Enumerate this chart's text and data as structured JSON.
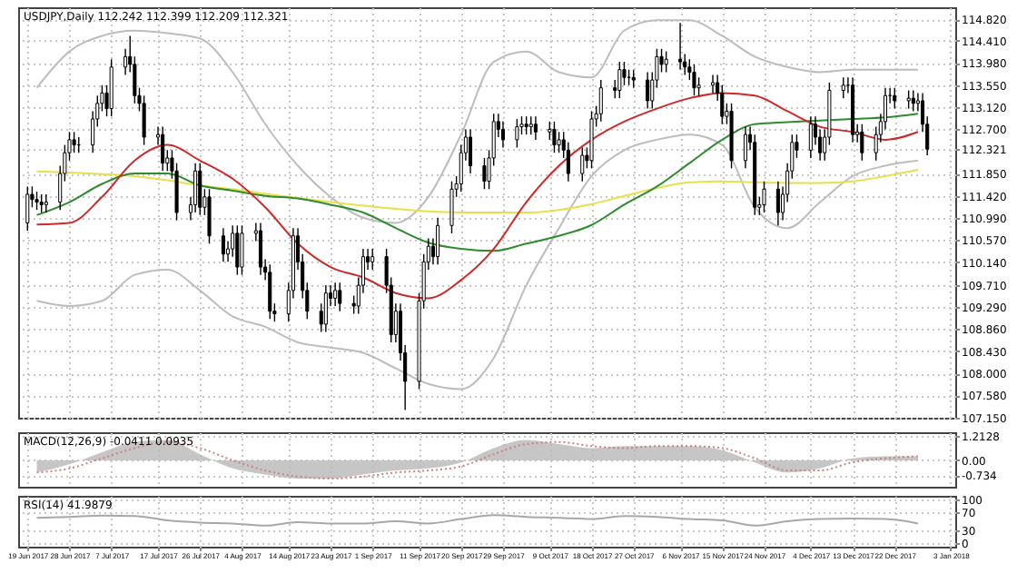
{
  "chart_data": [
    {
      "type": "candlestick",
      "title": "USDJPY,Daily  112.242 112.399 112.209 112.321",
      "x": [
        "2017-06-19",
        "2017-06-20",
        "2017-06-21",
        "2017-06-22",
        "2017-06-23",
        "2017-06-26",
        "2017-06-27",
        "2017-06-28",
        "2017-06-29",
        "2017-06-30",
        "2017-07-03",
        "2017-07-04",
        "2017-07-05",
        "2017-07-06",
        "2017-07-07",
        "2017-07-10",
        "2017-07-11",
        "2017-07-12",
        "2017-07-13",
        "2017-07-14",
        "2017-07-17",
        "2017-07-18",
        "2017-07-19",
        "2017-07-20",
        "2017-07-21",
        "2017-07-24",
        "2017-07-25",
        "2017-07-26",
        "2017-07-27",
        "2017-07-28",
        "2017-07-31",
        "2017-08-01",
        "2017-08-02",
        "2017-08-03",
        "2017-08-04",
        "2017-08-07",
        "2017-08-08",
        "2017-08-09",
        "2017-08-10",
        "2017-08-11",
        "2017-08-14",
        "2017-08-15",
        "2017-08-16",
        "2017-08-17",
        "2017-08-18",
        "2017-08-21",
        "2017-08-22",
        "2017-08-23",
        "2017-08-24",
        "2017-08-25",
        "2017-08-28",
        "2017-08-29",
        "2017-08-30",
        "2017-08-31",
        "2017-09-01",
        "2017-09-04",
        "2017-09-05",
        "2017-09-06",
        "2017-09-07",
        "2017-09-08",
        "2017-09-11",
        "2017-09-12",
        "2017-09-13",
        "2017-09-14",
        "2017-09-15",
        "2017-09-18",
        "2017-09-19",
        "2017-09-20",
        "2017-09-21",
        "2017-09-22",
        "2017-09-25",
        "2017-09-26",
        "2017-09-27",
        "2017-09-28",
        "2017-09-29",
        "2017-10-02",
        "2017-10-03",
        "2017-10-04",
        "2017-10-05",
        "2017-10-06",
        "2017-10-09",
        "2017-10-10",
        "2017-10-11",
        "2017-10-12",
        "2017-10-13",
        "2017-10-16",
        "2017-10-17",
        "2017-10-18",
        "2017-10-19",
        "2017-10-20",
        "2017-10-23",
        "2017-10-24",
        "2017-10-25",
        "2017-10-26",
        "2017-10-27",
        "2017-10-30",
        "2017-10-31",
        "2017-11-01",
        "2017-11-02",
        "2017-11-03",
        "2017-11-06",
        "2017-11-07",
        "2017-11-08",
        "2017-11-09",
        "2017-11-10",
        "2017-11-13",
        "2017-11-14",
        "2017-11-15",
        "2017-11-16",
        "2017-11-17",
        "2017-11-20",
        "2017-11-21",
        "2017-11-22",
        "2017-11-23",
        "2017-11-24",
        "2017-11-27",
        "2017-11-28",
        "2017-11-29",
        "2017-11-30",
        "2017-12-01",
        "2017-12-04",
        "2017-12-05",
        "2017-12-06",
        "2017-12-07",
        "2017-12-08",
        "2017-12-11",
        "2017-12-12",
        "2017-12-13",
        "2017-12-14",
        "2017-12-15",
        "2017-12-18",
        "2017-12-19",
        "2017-12-20",
        "2017-12-21",
        "2017-12-22",
        "2017-12-25",
        "2017-12-26",
        "2017-12-27",
        "2017-12-28",
        "2017-12-29"
      ],
      "ohlc": [
        [
          110.9,
          111.6,
          110.75,
          111.45
        ],
        [
          111.45,
          111.6,
          111.2,
          111.35
        ],
        [
          111.35,
          111.5,
          111.15,
          111.3
        ],
        [
          111.3,
          111.45,
          111.1,
          111.25
        ],
        [
          111.25,
          111.45,
          111.1,
          111.3
        ],
        [
          111.3,
          112.0,
          111.15,
          111.85
        ],
        [
          111.85,
          112.4,
          111.7,
          112.25
        ],
        [
          112.25,
          112.65,
          112.1,
          112.5
        ],
        [
          112.5,
          112.65,
          112.25,
          112.4
        ],
        [
          112.4,
          112.55,
          112.25,
          112.4
        ],
        [
          112.4,
          113.05,
          112.25,
          112.9
        ],
        [
          112.9,
          113.35,
          112.75,
          113.2
        ],
        [
          113.2,
          113.55,
          113.05,
          113.4
        ],
        [
          113.4,
          113.55,
          112.95,
          113.1
        ],
        [
          113.1,
          114.05,
          112.95,
          113.9
        ],
        [
          113.9,
          114.25,
          113.75,
          114.1
        ],
        [
          114.1,
          114.5,
          113.8,
          113.95
        ],
        [
          113.95,
          114.1,
          113.2,
          113.35
        ],
        [
          113.35,
          113.5,
          113.05,
          113.2
        ],
        [
          113.2,
          113.35,
          112.4,
          112.55
        ],
        [
          112.55,
          112.75,
          112.4,
          112.6
        ],
        [
          112.6,
          112.75,
          111.9,
          112.05
        ],
        [
          112.05,
          112.3,
          111.9,
          112.15
        ],
        [
          112.15,
          112.3,
          111.75,
          111.9
        ],
        [
          111.9,
          112.05,
          110.95,
          111.1
        ],
        [
          111.1,
          111.4,
          110.95,
          111.25
        ],
        [
          111.25,
          112.05,
          111.1,
          111.9
        ],
        [
          111.9,
          112.05,
          111.05,
          111.2
        ],
        [
          111.2,
          111.55,
          111.05,
          111.4
        ],
        [
          111.4,
          111.55,
          110.5,
          110.65
        ],
        [
          110.65,
          110.8,
          110.15,
          110.3
        ],
        [
          110.3,
          110.55,
          110.15,
          110.4
        ],
        [
          110.4,
          110.85,
          110.25,
          110.7
        ],
        [
          110.7,
          110.85,
          109.9,
          110.05
        ],
        [
          110.05,
          110.85,
          109.9,
          110.7
        ],
        [
          110.7,
          110.9,
          110.55,
          110.75
        ],
        [
          110.75,
          110.9,
          109.9,
          110.05
        ],
        [
          110.05,
          110.2,
          109.8,
          109.95
        ],
        [
          109.95,
          110.1,
          109.05,
          109.2
        ],
        [
          109.2,
          109.35,
          109.0,
          109.15
        ],
        [
          109.15,
          109.75,
          109.0,
          109.6
        ],
        [
          109.6,
          110.8,
          109.45,
          110.65
        ],
        [
          110.65,
          110.8,
          110.0,
          110.15
        ],
        [
          110.15,
          110.3,
          109.45,
          109.6
        ],
        [
          109.6,
          109.75,
          109.05,
          109.2
        ],
        [
          109.2,
          109.35,
          108.8,
          108.95
        ],
        [
          108.95,
          109.7,
          108.8,
          109.55
        ],
        [
          109.55,
          109.7,
          109.3,
          109.45
        ],
        [
          109.45,
          109.75,
          109.3,
          109.6
        ],
        [
          109.6,
          109.75,
          109.2,
          109.35
        ],
        [
          109.35,
          109.5,
          109.15,
          109.3
        ],
        [
          109.3,
          109.85,
          109.15,
          109.7
        ],
        [
          109.7,
          110.4,
          109.55,
          110.25
        ],
        [
          110.25,
          110.4,
          110.0,
          110.15
        ],
        [
          110.15,
          110.4,
          110.0,
          110.25
        ],
        [
          110.25,
          110.4,
          109.55,
          109.7
        ],
        [
          109.7,
          109.85,
          108.6,
          108.75
        ],
        [
          108.75,
          109.35,
          108.6,
          109.2
        ],
        [
          109.2,
          109.35,
          108.25,
          108.4
        ],
        [
          108.4,
          108.55,
          107.3,
          107.85
        ],
        [
          107.85,
          109.55,
          107.7,
          109.4
        ],
        [
          109.4,
          110.3,
          109.25,
          110.15
        ],
        [
          110.15,
          110.6,
          110.0,
          110.45
        ],
        [
          110.45,
          110.6,
          110.1,
          110.25
        ],
        [
          110.25,
          111.0,
          110.1,
          110.85
        ],
        [
          110.85,
          111.7,
          110.7,
          111.55
        ],
        [
          111.55,
          111.8,
          111.4,
          111.65
        ],
        [
          111.65,
          112.4,
          111.5,
          112.25
        ],
        [
          112.25,
          112.7,
          112.1,
          112.55
        ],
        [
          112.55,
          112.7,
          111.85,
          112.0
        ],
        [
          112.0,
          112.15,
          111.55,
          111.7
        ],
        [
          111.7,
          112.3,
          111.55,
          112.15
        ],
        [
          112.15,
          113.0,
          112.0,
          112.85
        ],
        [
          112.85,
          113.0,
          112.55,
          112.7
        ],
        [
          112.7,
          112.85,
          112.35,
          112.5
        ],
        [
          112.5,
          112.9,
          112.35,
          112.75
        ],
        [
          112.75,
          112.95,
          112.6,
          112.8
        ],
        [
          112.8,
          112.95,
          112.6,
          112.75
        ],
        [
          112.75,
          112.95,
          112.6,
          112.8
        ],
        [
          112.8,
          112.95,
          112.5,
          112.65
        ],
        [
          112.65,
          112.85,
          112.5,
          112.7
        ],
        [
          112.7,
          112.85,
          112.25,
          112.4
        ],
        [
          112.4,
          112.65,
          112.25,
          112.5
        ],
        [
          112.5,
          112.65,
          112.15,
          112.3
        ],
        [
          112.3,
          112.45,
          111.7,
          111.85
        ],
        [
          111.85,
          112.35,
          111.7,
          112.2
        ],
        [
          112.2,
          112.35,
          111.95,
          112.1
        ],
        [
          112.1,
          113.05,
          111.95,
          112.9
        ],
        [
          112.9,
          113.15,
          112.75,
          113.0
        ],
        [
          113.0,
          113.65,
          112.85,
          113.5
        ],
        [
          113.5,
          113.65,
          113.3,
          113.45
        ],
        [
          113.45,
          114.0,
          113.3,
          113.85
        ],
        [
          113.85,
          114.0,
          113.55,
          113.7
        ],
        [
          113.7,
          113.85,
          113.55,
          113.7
        ],
        [
          113.7,
          113.85,
          113.5,
          113.65
        ],
        [
          113.65,
          113.8,
          113.1,
          113.25
        ],
        [
          113.25,
          113.8,
          113.1,
          113.65
        ],
        [
          113.65,
          114.25,
          113.5,
          114.1
        ],
        [
          114.1,
          114.25,
          113.8,
          113.95
        ],
        [
          113.95,
          114.2,
          113.8,
          114.05
        ],
        [
          114.05,
          114.75,
          113.85,
          114.0
        ],
        [
          114.0,
          114.15,
          113.75,
          113.9
        ],
        [
          113.9,
          114.05,
          113.65,
          113.8
        ],
        [
          113.8,
          113.95,
          113.35,
          113.5
        ],
        [
          113.5,
          113.7,
          113.35,
          113.55
        ],
        [
          113.55,
          113.75,
          113.4,
          113.6
        ],
        [
          113.6,
          113.75,
          113.25,
          113.4
        ],
        [
          113.4,
          113.55,
          112.8,
          112.95
        ],
        [
          112.95,
          113.2,
          112.8,
          113.05
        ],
        [
          113.05,
          113.2,
          111.95,
          112.1
        ],
        [
          112.1,
          112.75,
          111.95,
          112.6
        ],
        [
          112.6,
          112.75,
          112.3,
          112.45
        ],
        [
          112.45,
          112.6,
          111.05,
          111.2
        ],
        [
          111.2,
          111.4,
          111.05,
          111.25
        ],
        [
          111.25,
          111.7,
          111.1,
          111.55
        ],
        [
          111.55,
          111.7,
          110.85,
          111.1
        ],
        [
          111.1,
          111.6,
          110.95,
          111.45
        ],
        [
          111.45,
          112.05,
          111.3,
          111.9
        ],
        [
          111.9,
          112.6,
          111.75,
          112.45
        ],
        [
          112.45,
          112.6,
          112.15,
          112.3
        ],
        [
          112.3,
          112.95,
          112.15,
          112.8
        ],
        [
          112.8,
          112.95,
          112.4,
          112.55
        ],
        [
          112.55,
          112.7,
          112.1,
          112.25
        ],
        [
          112.25,
          112.7,
          112.1,
          112.55
        ],
        [
          112.55,
          113.6,
          112.4,
          113.45
        ],
        [
          113.45,
          113.7,
          113.3,
          113.55
        ],
        [
          113.55,
          113.7,
          113.4,
          113.55
        ],
        [
          113.55,
          113.7,
          112.45,
          112.6
        ],
        [
          112.6,
          112.8,
          112.45,
          112.65
        ],
        [
          112.65,
          112.8,
          112.1,
          112.25
        ],
        [
          112.25,
          112.75,
          112.1,
          112.6
        ],
        [
          112.6,
          113.0,
          112.45,
          112.85
        ],
        [
          112.85,
          113.5,
          112.7,
          113.35
        ],
        [
          113.35,
          113.5,
          113.2,
          113.35
        ],
        [
          113.35,
          113.5,
          113.1,
          113.25
        ],
        [
          113.25,
          113.45,
          113.1,
          113.3
        ],
        [
          113.3,
          113.45,
          113.05,
          113.2
        ],
        [
          113.2,
          113.4,
          113.05,
          113.25
        ],
        [
          113.25,
          113.4,
          112.65,
          112.8
        ],
        [
          112.8,
          112.95,
          112.2,
          112.32
        ]
      ],
      "series": [
        {
          "type": "line",
          "color": "#bdbdbd",
          "x": [
            "2017-06-21",
            "2017-06-28",
            "2017-07-05",
            "2017-07-12",
            "2017-07-19",
            "2017-07-26",
            "2017-08-02",
            "2017-08-09",
            "2017-08-16",
            "2017-08-23",
            "2017-08-30",
            "2017-09-06",
            "2017-09-13",
            "2017-09-20",
            "2017-09-27",
            "2017-10-04",
            "2017-10-11",
            "2017-10-18",
            "2017-10-25",
            "2017-11-01",
            "2017-11-08",
            "2017-11-15",
            "2017-11-22",
            "2017-11-29",
            "2017-12-06",
            "2017-12-13",
            "2017-12-20",
            "2017-12-27"
          ],
          "values": [
            113.5,
            114.2,
            114.5,
            114.6,
            114.55,
            114.45,
            113.8,
            112.8,
            112.0,
            111.4,
            111.0,
            110.9,
            111.4,
            112.6,
            114.0,
            114.2,
            113.8,
            113.7,
            114.6,
            114.8,
            114.8,
            114.5,
            114.1,
            113.9,
            113.8,
            113.85,
            113.85,
            113.85
          ]
        },
        {
          "type": "line",
          "color": "#bdbdbd",
          "x": [
            "2017-06-21",
            "2017-06-28",
            "2017-07-05",
            "2017-07-12",
            "2017-07-19",
            "2017-07-26",
            "2017-08-02",
            "2017-08-09",
            "2017-08-16",
            "2017-08-23",
            "2017-08-30",
            "2017-09-06",
            "2017-09-13",
            "2017-09-20",
            "2017-09-27",
            "2017-10-04",
            "2017-10-11",
            "2017-10-18",
            "2017-10-25",
            "2017-11-01",
            "2017-11-08",
            "2017-11-15",
            "2017-11-22",
            "2017-11-29",
            "2017-12-06",
            "2017-12-13",
            "2017-12-20",
            "2017-12-27"
          ],
          "values": [
            109.4,
            109.3,
            109.4,
            109.9,
            110.0,
            109.6,
            109.1,
            108.9,
            108.6,
            108.5,
            108.4,
            108.1,
            107.8,
            107.7,
            108.3,
            109.7,
            110.8,
            111.8,
            112.3,
            112.5,
            112.6,
            112.4,
            111.2,
            110.8,
            111.3,
            111.8,
            112.0,
            112.1
          ]
        },
        {
          "type": "line",
          "color": "#e8e04a",
          "x": [
            "2017-06-21",
            "2017-06-28",
            "2017-07-05",
            "2017-07-12",
            "2017-07-19",
            "2017-07-26",
            "2017-08-02",
            "2017-08-09",
            "2017-08-16",
            "2017-08-23",
            "2017-08-30",
            "2017-09-06",
            "2017-09-13",
            "2017-09-20",
            "2017-09-27",
            "2017-10-04",
            "2017-10-11",
            "2017-10-18",
            "2017-10-25",
            "2017-11-01",
            "2017-11-08",
            "2017-11-15",
            "2017-11-22",
            "2017-11-29",
            "2017-12-06",
            "2017-12-13",
            "2017-12-20",
            "2017-12-27"
          ],
          "values": [
            111.89,
            111.87,
            111.84,
            111.8,
            111.72,
            111.62,
            111.55,
            111.46,
            111.38,
            111.3,
            111.23,
            111.17,
            111.12,
            111.1,
            111.1,
            111.1,
            111.15,
            111.26,
            111.42,
            111.57,
            111.68,
            111.7,
            111.68,
            111.67,
            111.67,
            111.7,
            111.8,
            111.92
          ]
        },
        {
          "type": "line",
          "color": "#2e8b2e",
          "x": [
            "2017-06-21",
            "2017-06-28",
            "2017-07-05",
            "2017-07-12",
            "2017-07-19",
            "2017-07-26",
            "2017-08-02",
            "2017-08-09",
            "2017-08-16",
            "2017-08-23",
            "2017-08-30",
            "2017-09-06",
            "2017-09-13",
            "2017-09-20",
            "2017-09-27",
            "2017-10-04",
            "2017-10-11",
            "2017-10-18",
            "2017-10-25",
            "2017-11-01",
            "2017-11-08",
            "2017-11-15",
            "2017-11-22",
            "2017-11-29",
            "2017-12-06",
            "2017-12-13",
            "2017-12-20",
            "2017-12-27"
          ],
          "values": [
            111.05,
            111.3,
            111.65,
            111.85,
            111.85,
            111.62,
            111.52,
            111.42,
            111.37,
            111.25,
            111.1,
            110.8,
            110.52,
            110.4,
            110.36,
            110.5,
            110.65,
            110.86,
            111.25,
            111.6,
            112.05,
            112.5,
            112.8,
            112.84,
            112.87,
            112.9,
            112.93,
            113.0
          ]
        },
        {
          "type": "line",
          "color": "#d02828",
          "x": [
            "2017-06-21",
            "2017-06-28",
            "2017-07-05",
            "2017-07-12",
            "2017-07-19",
            "2017-07-26",
            "2017-08-02",
            "2017-08-09",
            "2017-08-16",
            "2017-08-23",
            "2017-08-30",
            "2017-09-06",
            "2017-09-13",
            "2017-09-20",
            "2017-09-27",
            "2017-10-04",
            "2017-10-11",
            "2017-10-18",
            "2017-10-25",
            "2017-11-01",
            "2017-11-08",
            "2017-11-15",
            "2017-11-22",
            "2017-11-29",
            "2017-12-06",
            "2017-12-13",
            "2017-12-20",
            "2017-12-27"
          ],
          "values": [
            110.87,
            110.9,
            111.4,
            112.1,
            112.4,
            112.1,
            111.75,
            111.2,
            110.5,
            110.05,
            109.85,
            109.55,
            109.45,
            109.8,
            110.4,
            111.3,
            112.0,
            112.5,
            112.85,
            113.1,
            113.3,
            113.4,
            113.35,
            113.05,
            112.75,
            112.65,
            112.5,
            112.65
          ]
        }
      ],
      "xlim": [
        "2017-06-17",
        "2018-01-04"
      ],
      "xticks": [
        "2017-06-19",
        "2017-06-28",
        "2017-07-07",
        "2017-07-17",
        "2017-07-26",
        "2017-08-04",
        "2017-08-14",
        "2017-08-23",
        "2017-09-01",
        "2017-09-11",
        "2017-09-20",
        "2017-09-29",
        "2017-10-09",
        "2017-10-18",
        "2017-10-27",
        "2017-11-06",
        "2017-11-15",
        "2017-11-24",
        "2017-12-04",
        "2017-12-13",
        "2017-12-22",
        "2018-01-03"
      ],
      "ylim": [
        107.15,
        115.05
      ],
      "yticks": [
        {
          "value": 107.15,
          "label": "107.150"
        },
        {
          "value": 107.58,
          "label": "107.580"
        },
        {
          "value": 108.0,
          "label": "108.000"
        },
        {
          "value": 108.43,
          "label": "108.430"
        },
        {
          "value": 108.86,
          "label": "108.860"
        },
        {
          "value": 109.29,
          "label": "109.290"
        },
        {
          "value": 109.71,
          "label": "109.710"
        },
        {
          "value": 110.14,
          "label": "110.140"
        },
        {
          "value": 110.57,
          "label": "110.570"
        },
        {
          "value": 110.99,
          "label": "110.990"
        },
        {
          "value": 111.42,
          "label": "111.420"
        },
        {
          "value": 111.85,
          "label": "111.850"
        },
        112.321,
        {
          "value": 112.7,
          "label": "112.700"
        },
        {
          "value": 113.12,
          "label": "113.120"
        },
        {
          "value": 113.55,
          "label": "113.550"
        },
        {
          "value": 113.98,
          "label": "113.980"
        },
        {
          "value": 114.41,
          "label": "114.410"
        },
        {
          "value": 114.82,
          "label": "114.820"
        }
      ],
      "grid": true,
      "tick_labels": "y"
    },
    {
      "type": "area",
      "title": "MACD(12,26,9) -0.0411 0.0935",
      "series": [
        {
          "type": "area",
          "color": "#b8b8b8",
          "x": [
            "2017-06-21",
            "2017-06-28",
            "2017-07-05",
            "2017-07-12",
            "2017-07-19",
            "2017-07-26",
            "2017-08-02",
            "2017-08-09",
            "2017-08-16",
            "2017-08-23",
            "2017-08-30",
            "2017-09-06",
            "2017-09-13",
            "2017-09-20",
            "2017-09-27",
            "2017-10-04",
            "2017-10-11",
            "2017-10-18",
            "2017-10-25",
            "2017-11-01",
            "2017-11-08",
            "2017-11-15",
            "2017-11-22",
            "2017-11-29",
            "2017-12-06",
            "2017-12-13",
            "2017-12-20",
            "2017-12-27"
          ],
          "values": [
            -0.6,
            -0.2,
            0.4,
            0.9,
            1.0,
            0.3,
            -0.4,
            -0.7,
            -0.9,
            -0.9,
            -0.7,
            -0.5,
            -0.4,
            -0.1,
            0.6,
            1.0,
            0.8,
            0.6,
            0.7,
            0.7,
            0.7,
            0.5,
            -0.1,
            -0.6,
            -0.4,
            0.1,
            0.2,
            0.2
          ]
        },
        {
          "type": "line",
          "color": "#d08080",
          "line_style": "dotted",
          "x": [
            "2017-06-21",
            "2017-06-28",
            "2017-07-05",
            "2017-07-12",
            "2017-07-19",
            "2017-07-26",
            "2017-08-02",
            "2017-08-09",
            "2017-08-16",
            "2017-08-23",
            "2017-08-30",
            "2017-09-06",
            "2017-09-13",
            "2017-09-20",
            "2017-09-27",
            "2017-10-04",
            "2017-10-11",
            "2017-10-18",
            "2017-10-25",
            "2017-11-01",
            "2017-11-08",
            "2017-11-15",
            "2017-11-22",
            "2017-11-29",
            "2017-12-06",
            "2017-12-13",
            "2017-12-20",
            "2017-12-27"
          ],
          "values": [
            -0.6,
            -0.4,
            0.1,
            0.6,
            0.9,
            0.6,
            0.0,
            -0.5,
            -0.8,
            -0.9,
            -0.8,
            -0.6,
            -0.5,
            -0.3,
            0.3,
            0.8,
            0.9,
            0.7,
            0.6,
            0.7,
            0.7,
            0.6,
            0.1,
            -0.5,
            -0.5,
            -0.1,
            0.1,
            0.2
          ]
        }
      ],
      "xlim": [
        "2017-06-17",
        "2018-01-04"
      ],
      "xticks": [
        "2017-06-19",
        "2017-06-28",
        "2017-07-07",
        "2017-07-17",
        "2017-07-26",
        "2017-08-04",
        "2017-08-14",
        "2017-08-23",
        "2017-09-01",
        "2017-09-11",
        "2017-09-20",
        "2017-09-29",
        "2017-10-09",
        "2017-10-18",
        "2017-10-27",
        "2017-11-06",
        "2017-11-15",
        "2017-11-24",
        "2017-12-04",
        "2017-12-13",
        "2017-12-22",
        "2018-01-03"
      ],
      "ylim": [
        -1.3,
        1.38
      ],
      "yticks": [
        -0.734,
        {
          "value": 0,
          "label": "0.00"
        },
        1.2128
      ],
      "grid": true,
      "tick_labels": "y"
    },
    {
      "type": "line",
      "title": "RSI(14) 41.9879",
      "series": [
        {
          "type": "line",
          "color": "#a8a8a8",
          "x": [
            "2017-06-21",
            "2017-06-28",
            "2017-07-05",
            "2017-07-12",
            "2017-07-19",
            "2017-07-26",
            "2017-08-02",
            "2017-08-09",
            "2017-08-16",
            "2017-08-23",
            "2017-08-30",
            "2017-09-06",
            "2017-09-13",
            "2017-09-20",
            "2017-09-27",
            "2017-10-04",
            "2017-10-11",
            "2017-10-18",
            "2017-10-25",
            "2017-11-01",
            "2017-11-08",
            "2017-11-15",
            "2017-11-22",
            "2017-11-29",
            "2017-12-06",
            "2017-12-13",
            "2017-12-20",
            "2017-12-27"
          ],
          "values": [
            58,
            60,
            63,
            62,
            52,
            47,
            45,
            40,
            48,
            45,
            45,
            50,
            45,
            55,
            64,
            60,
            58,
            55,
            62,
            60,
            55,
            52,
            40,
            50,
            55,
            56,
            55,
            45
          ]
        }
      ],
      "xlim": [
        "2017-06-17",
        "2018-01-04"
      ],
      "xticks": [
        {
          "value": "2017-06-19",
          "label": "19 Jun 2017"
        },
        {
          "value": "2017-06-28",
          "label": "28 Jun 2017"
        },
        {
          "value": "2017-07-07",
          "label": "7 Jul 2017"
        },
        {
          "value": "2017-07-17",
          "label": "17 Jul 2017"
        },
        {
          "value": "2017-07-26",
          "label": "26 Jul 2017"
        },
        {
          "value": "2017-08-04",
          "label": "4 Aug 2017"
        },
        {
          "value": "2017-08-14",
          "label": "14 Aug 2017"
        },
        {
          "value": "2017-08-23",
          "label": "23 Aug 2017"
        },
        {
          "value": "2017-09-01",
          "label": "1 Sep 2017"
        },
        {
          "value": "2017-09-11",
          "label": "11 Sep 2017"
        },
        {
          "value": "2017-09-20",
          "label": "20 Sep 2017"
        },
        {
          "value": "2017-09-29",
          "label": "29 Sep 2017"
        },
        {
          "value": "2017-10-09",
          "label": "9 Oct 2017"
        },
        {
          "value": "2017-10-18",
          "label": "18 Oct 2017"
        },
        {
          "value": "2017-10-27",
          "label": "27 Oct 2017"
        },
        {
          "value": "2017-11-06",
          "label": "6 Nov 2017"
        },
        {
          "value": "2017-11-15",
          "label": "15 Nov 2017"
        },
        {
          "value": "2017-11-24",
          "label": "24 Nov 2017"
        },
        {
          "value": "2017-12-04",
          "label": "4 Dec 2017"
        },
        {
          "value": "2017-12-13",
          "label": "13 Dec 2017"
        },
        {
          "value": "2017-12-22",
          "label": "22 Dec 2017"
        },
        {
          "value": "2018-01-03",
          "label": "3 Jan 2018"
        }
      ],
      "ylim": [
        -8,
        108
      ],
      "yticks": [
        0,
        30,
        70,
        100
      ],
      "grid": true
    }
  ]
}
